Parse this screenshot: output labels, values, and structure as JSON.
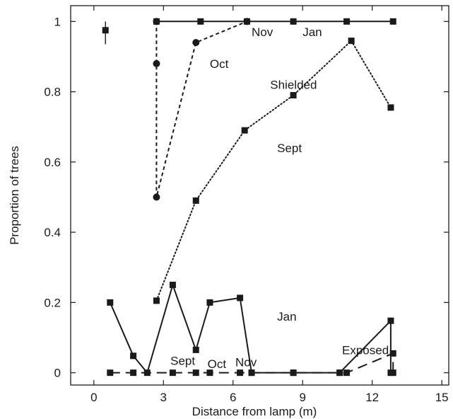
{
  "chart_data": {
    "type": "line",
    "title": "",
    "xlabel": "Distance from lamp (m)",
    "ylabel": "Proportion of trees",
    "xlim": [
      -1,
      15.3
    ],
    "ylim": [
      -0.035,
      1.045
    ],
    "xticks": [
      0,
      3,
      6,
      9,
      12,
      15
    ],
    "xtick_labels": [
      "0",
      "3",
      "6",
      "9",
      "12",
      "15"
    ],
    "yticks": [
      0,
      0.2,
      0.4,
      0.6,
      0.8,
      1
    ],
    "ytick_labels": [
      "0",
      "0.2",
      "0.4",
      "0.6",
      "0.8",
      "1"
    ],
    "grid": false,
    "series": [
      {
        "id": "shielded-nov-jan",
        "group": "Shielded",
        "style": "solid",
        "marker": "square",
        "points": [
          [
            2.7,
            1.0
          ],
          [
            4.6,
            1.0
          ],
          [
            6.6,
            1.0
          ],
          [
            8.6,
            1.0
          ],
          [
            10.9,
            1.0
          ],
          [
            12.9,
            1.0
          ]
        ]
      },
      {
        "id": "shielded-oct",
        "group": "Shielded",
        "style": "dashed-short",
        "marker": "circle",
        "points": [
          [
            2.7,
            1.0
          ],
          [
            2.7,
            0.88
          ],
          [
            2.7,
            0.5
          ],
          [
            4.4,
            0.94
          ],
          [
            6.6,
            1.0
          ]
        ]
      },
      {
        "id": "shielded-sept",
        "group": "Shielded",
        "style": "dotted",
        "marker": "square",
        "points": [
          [
            2.7,
            0.205
          ],
          [
            4.4,
            0.49
          ],
          [
            6.5,
            0.69
          ],
          [
            8.6,
            0.79
          ],
          [
            11.1,
            0.945
          ],
          [
            12.8,
            0.755
          ]
        ]
      },
      {
        "id": "exposed-jan",
        "group": "Exposed",
        "style": "solid",
        "marker": "square",
        "points": [
          [
            0.7,
            0.2
          ],
          [
            1.7,
            0.048
          ],
          [
            2.3,
            0.0
          ],
          [
            3.4,
            0.25
          ],
          [
            4.4,
            0.065
          ],
          [
            5.0,
            0.2
          ],
          [
            6.3,
            0.213
          ],
          [
            6.8,
            0.0
          ],
          [
            8.6,
            0.0
          ],
          [
            10.6,
            0.0
          ],
          [
            12.8,
            0.148
          ],
          [
            12.8,
            0.0
          ]
        ]
      },
      {
        "id": "exposed-sept-oct-nov",
        "group": "Exposed",
        "style": "dashed-long",
        "marker": "square",
        "points": [
          [
            0.7,
            0.0
          ],
          [
            1.7,
            0.0
          ],
          [
            3.4,
            0.0
          ],
          [
            4.4,
            0.0
          ],
          [
            5.0,
            0.0
          ],
          [
            6.3,
            0.0
          ],
          [
            6.8,
            0.0
          ],
          [
            8.6,
            0.0
          ],
          [
            10.6,
            0.0
          ],
          [
            10.9,
            0.0
          ],
          [
            12.9,
            0.055
          ],
          [
            12.9,
            0.0
          ]
        ]
      }
    ],
    "errorbar": {
      "x": 0.5,
      "y": 0.975,
      "low": 0.935,
      "high": 1.0
    },
    "annotations": [
      {
        "text": "Nov",
        "x": 6.8,
        "y": 0.97
      },
      {
        "text": "Jan",
        "x": 9.0,
        "y": 0.97
      },
      {
        "text": "Oct",
        "x": 5.0,
        "y": 0.88
      },
      {
        "text": "Shielded",
        "x": 7.6,
        "y": 0.82
      },
      {
        "text": "Sept",
        "x": 7.9,
        "y": 0.64
      },
      {
        "text": "Jan",
        "x": 7.9,
        "y": 0.16
      },
      {
        "text": "Exposed",
        "x": 10.7,
        "y": 0.065
      },
      {
        "text": "Sept",
        "x": 3.3,
        "y": 0.035
      },
      {
        "text": "Oct",
        "x": 4.9,
        "y": 0.025
      },
      {
        "text": "Nov",
        "x": 6.1,
        "y": 0.03
      }
    ]
  }
}
